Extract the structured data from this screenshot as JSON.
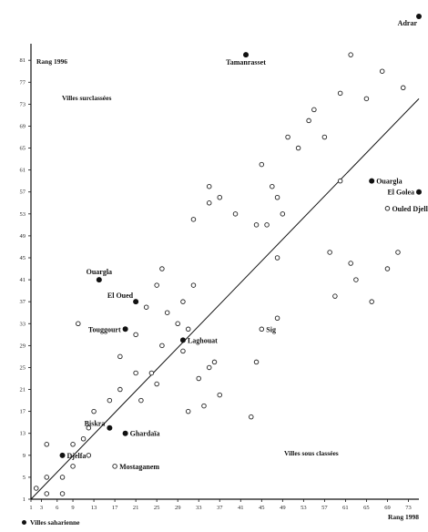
{
  "chart_data": {
    "type": "scatter",
    "title": "",
    "ylabel": "Rang 1996",
    "xlabel": "Rang 1998",
    "xlim": [
      1,
      75
    ],
    "ylim": [
      1,
      89
    ],
    "x_ticks": [
      "1",
      "3",
      "6",
      "9",
      "13",
      "17",
      "21",
      "25",
      "29",
      "33",
      "37",
      "41",
      "45",
      "49",
      "53",
      "57",
      "61",
      "65",
      "69",
      "73"
    ],
    "y_ticks": [
      "1",
      "5",
      "9",
      "13",
      "17",
      "21",
      "25",
      "29",
      "33",
      "37",
      "41",
      "45",
      "49",
      "53",
      "57",
      "61",
      "65",
      "69",
      "73",
      "77",
      "81"
    ],
    "regions": {
      "upper_left": "Villes surclassées",
      "lower_right": "Villes sous classées",
      "legend": "Villes saharienne"
    },
    "reference_line": {
      "x": [
        1,
        75
      ],
      "y": [
        1,
        74
      ]
    },
    "saharan_points": [
      {
        "x": 75,
        "y": 89,
        "label": "Adrar"
      },
      {
        "x": 42,
        "y": 82,
        "label": "Tamanrasset"
      },
      {
        "x": 66,
        "y": 59,
        "label": "Ouargla"
      },
      {
        "x": 75,
        "y": 57,
        "label": "El Golea"
      },
      {
        "x": 14,
        "y": 41,
        "label": "Ouargla"
      },
      {
        "x": 21,
        "y": 37,
        "label": "El Oued"
      },
      {
        "x": 19,
        "y": 32,
        "label": "Touggourt"
      },
      {
        "x": 30,
        "y": 30,
        "label": "Laghouat"
      },
      {
        "x": 16,
        "y": 14,
        "label": "Biskra"
      },
      {
        "x": 19,
        "y": 13,
        "label": "Ghardaïa"
      },
      {
        "x": 7,
        "y": 9,
        "label": "Djelfa"
      }
    ],
    "open_labels": [
      {
        "x": 69,
        "y": 54,
        "label": "Ouled Djellal"
      },
      {
        "x": 45,
        "y": 32,
        "label": "Sig"
      },
      {
        "x": 17,
        "y": 7,
        "label": "Mostaganem"
      }
    ],
    "other_points": [
      [
        62,
        82
      ],
      [
        68,
        79
      ],
      [
        72,
        76
      ],
      [
        65,
        74
      ],
      [
        60,
        75
      ],
      [
        55,
        72
      ],
      [
        54,
        70
      ],
      [
        50,
        67
      ],
      [
        57,
        67
      ],
      [
        52,
        65
      ],
      [
        45,
        62
      ],
      [
        60,
        59
      ],
      [
        35,
        58
      ],
      [
        37,
        56
      ],
      [
        47,
        58
      ],
      [
        48,
        56
      ],
      [
        49,
        53
      ],
      [
        46,
        51
      ],
      [
        48,
        45
      ],
      [
        40,
        53
      ],
      [
        44,
        51
      ],
      [
        35,
        55
      ],
      [
        32,
        52
      ],
      [
        71,
        46
      ],
      [
        69,
        43
      ],
      [
        58,
        46
      ],
      [
        62,
        44
      ],
      [
        63,
        41
      ],
      [
        59,
        38
      ],
      [
        66,
        37
      ],
      [
        26,
        43
      ],
      [
        25,
        40
      ],
      [
        23,
        36
      ],
      [
        27,
        35
      ],
      [
        30,
        37
      ],
      [
        32,
        40
      ],
      [
        29,
        33
      ],
      [
        31,
        32
      ],
      [
        30,
        28
      ],
      [
        26,
        29
      ],
      [
        21,
        31
      ],
      [
        18,
        27
      ],
      [
        21,
        24
      ],
      [
        24,
        24
      ],
      [
        25,
        22
      ],
      [
        18,
        21
      ],
      [
        22,
        19
      ],
      [
        16,
        19
      ],
      [
        13,
        17
      ],
      [
        12,
        14
      ],
      [
        11,
        12
      ],
      [
        9,
        11
      ],
      [
        12,
        9
      ],
      [
        9,
        7
      ],
      [
        7,
        5
      ],
      [
        4,
        5
      ],
      [
        4,
        11
      ],
      [
        7,
        2
      ],
      [
        4,
        2
      ],
      [
        2,
        3
      ],
      [
        35,
        25
      ],
      [
        36,
        26
      ],
      [
        33,
        23
      ],
      [
        34,
        18
      ],
      [
        44,
        26
      ],
      [
        43,
        16
      ],
      [
        31,
        17
      ],
      [
        37,
        20
      ],
      [
        10,
        33
      ],
      [
        48,
        34
      ]
    ]
  }
}
